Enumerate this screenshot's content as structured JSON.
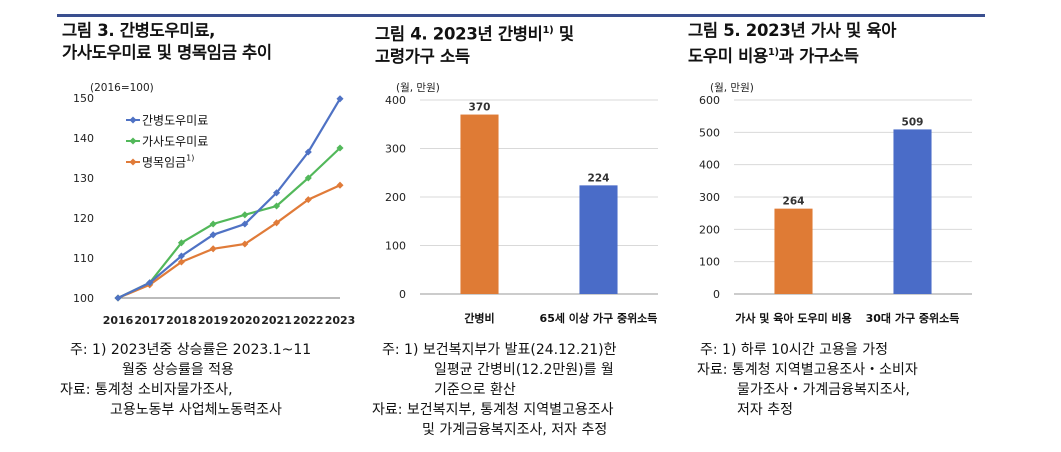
{
  "panel1": {
    "title_line1": "그림 3. 간병도우미료,",
    "title_line2": "가사도우미료 및 명목임금 추이",
    "notes": {
      "line1": "주:  1)  2023년중 상승률은 2023.1~11",
      "line2": "월중 상승률을 적용",
      "line3": "자료: 통계청 소비자물가조사,",
      "line4": "고용노동부 사업체노동력조사"
    }
  },
  "panel2": {
    "title_line1": "그림 4. 2023년 간병비",
    "title_sup": "1)",
    "title_line1_end": " 및",
    "title_line2": "고령가구 소득",
    "notes": {
      "line1": "주:  1)  보건복지부가 발표(24.12.21)한",
      "line2": "일평균 간병비(12.2만원)를 월",
      "line3": "기준으로 환산",
      "line4": "자료: 보건복지부, 통계청 지역별고용조사",
      "line5": "및 가계금융복지조사, 저자 추정"
    }
  },
  "panel3": {
    "title_line1": "그림 5. 2023년 가사 및 육아",
    "title_line2a": "도우미 비용",
    "title_sup": "1)",
    "title_line2b": "과 가구소득",
    "notes": {
      "line1": "주: 1) 하루 10시간 고용을 가정",
      "line2": "자료:  통계청 지역별고용조사・소비자",
      "line3": "물가조사・가계금융복지조사,",
      "line4": "저자 추정"
    }
  },
  "colors": {
    "blue": "#4f72c4",
    "green": "#52b85a",
    "orange": "#e07b39",
    "bar_orange": "#df7b35",
    "bar_blue": "#4a6cc8"
  },
  "chart_data": [
    {
      "type": "line",
      "unit_label": "(2016=100)",
      "categories": [
        "2016",
        "2017",
        "2018",
        "2019",
        "2020",
        "2021",
        "2022",
        "2023"
      ],
      "ylim": [
        100,
        150
      ],
      "yticks": [
        "100",
        "110",
        "120",
        "130",
        "140",
        "150"
      ],
      "legend_position": "top-left",
      "series": [
        {
          "name": "간병도우미료",
          "values": [
            100,
            103.8,
            110.5,
            115.8,
            118.5,
            126.3,
            136.5,
            149.8
          ]
        },
        {
          "name": "가사도우미료",
          "values": [
            100,
            103.8,
            113.8,
            118.5,
            120.8,
            123.0,
            130.0,
            137.5
          ]
        },
        {
          "name": "명목임금",
          "name_sup": "1)",
          "values": [
            100,
            103.3,
            109.0,
            112.3,
            113.5,
            118.8,
            124.6,
            128.2
          ]
        }
      ]
    },
    {
      "type": "bar",
      "unit_label": "(월, 만원)",
      "categories": [
        "간병비",
        "65세 이상 가구 중위소득"
      ],
      "values": [
        370,
        224
      ],
      "value_labels": [
        "370",
        "224"
      ],
      "ylim": [
        0,
        400
      ],
      "yticks": [
        "0",
        "100",
        "200",
        "300",
        "400"
      ]
    },
    {
      "type": "bar",
      "unit_label": "(월, 만원)",
      "categories": [
        "가사 및 육아 도우미 비용",
        "30대 가구 중위소득"
      ],
      "values": [
        264,
        509
      ],
      "value_labels": [
        "264",
        "509"
      ],
      "ylim": [
        0,
        600
      ],
      "yticks": [
        "0",
        "100",
        "200",
        "300",
        "400",
        "500",
        "600"
      ]
    }
  ]
}
